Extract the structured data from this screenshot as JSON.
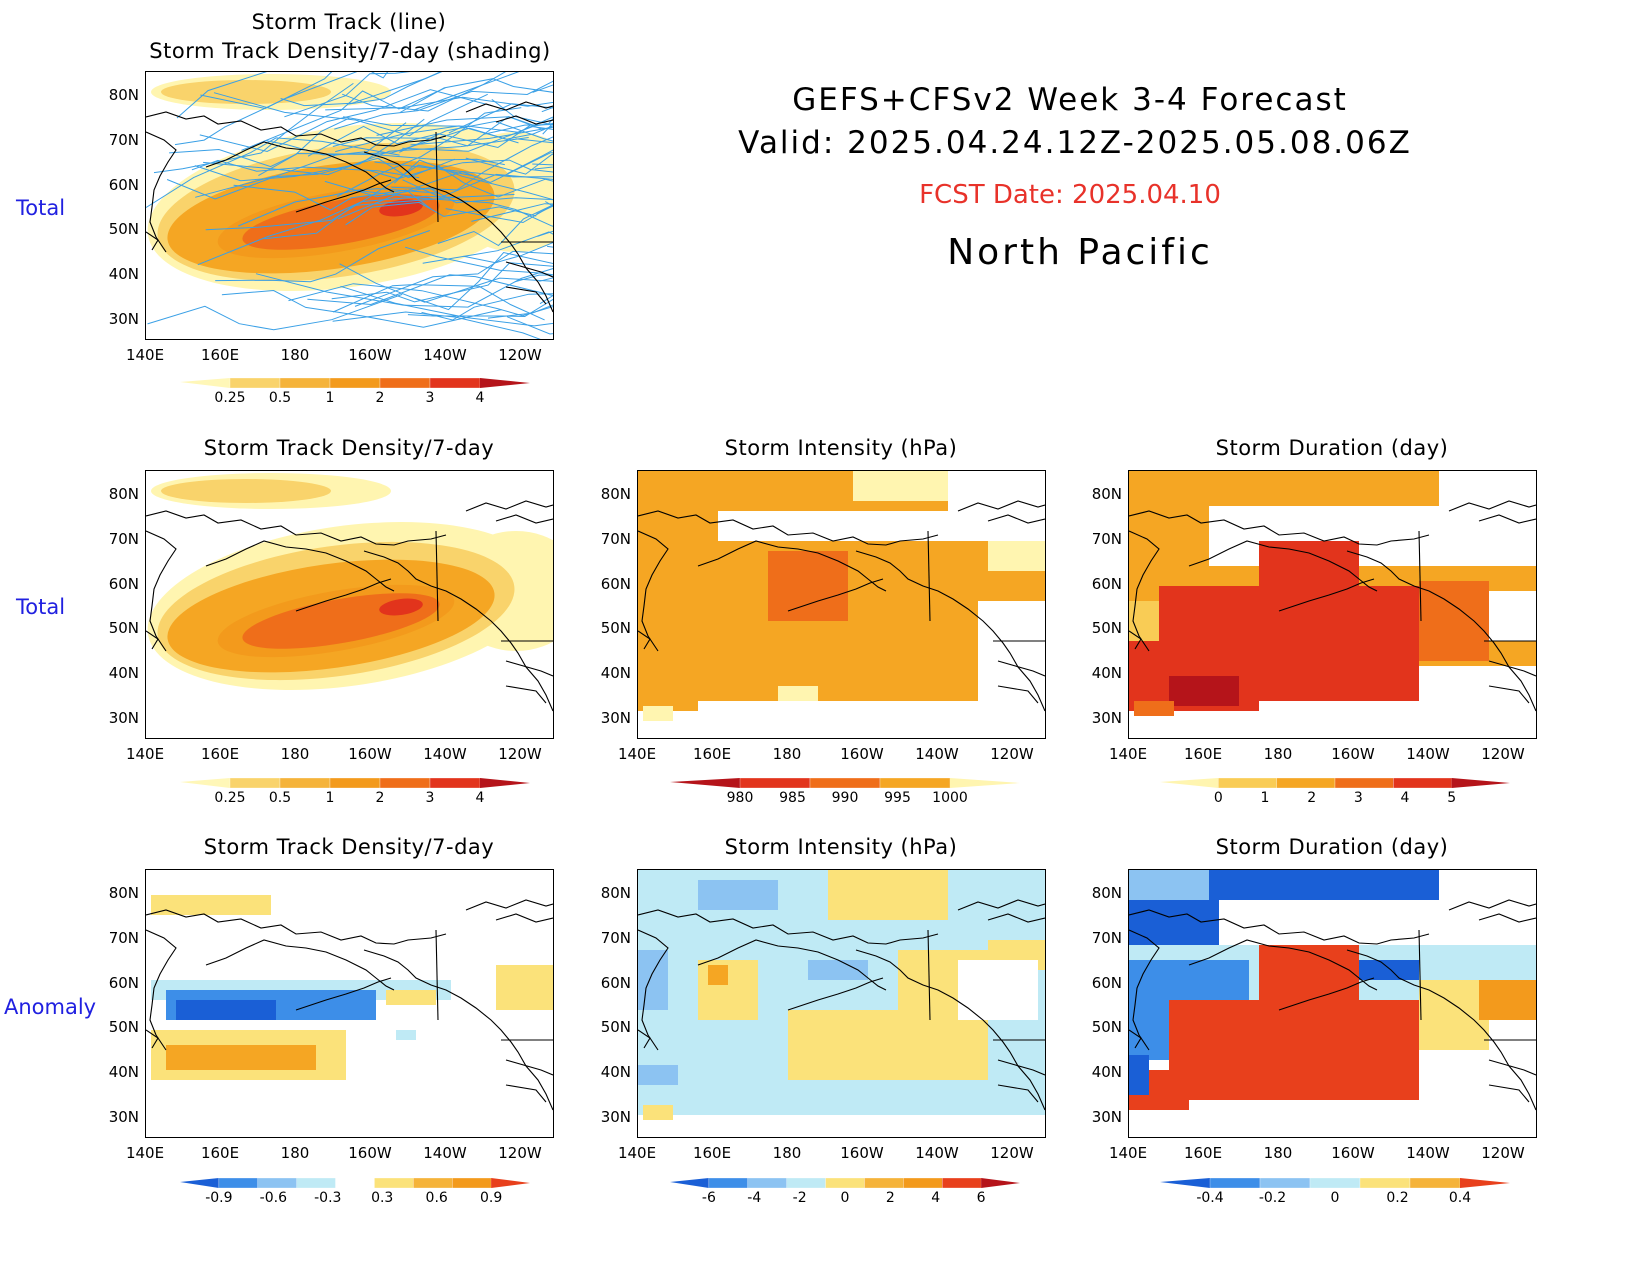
{
  "header": {
    "line1": "GEFS+CFSv2  Week  3-4  Forecast",
    "line2": "Valid:  2025.04.24.12Z-2025.05.08.06Z",
    "fcst": "FCST Date: 2025.04.10",
    "region": "North  Pacific"
  },
  "rows": {
    "total": "Total",
    "total2": "Total",
    "anomaly": "Anomaly"
  },
  "panels": {
    "p0": {
      "title1": "Storm Track (line)",
      "title2": "Storm Track Density/7-day (shading)"
    },
    "p1": {
      "title": "Storm  Track  Density/7-day"
    },
    "p2": {
      "title": "Storm  Intensity  (hPa)"
    },
    "p3": {
      "title": "Storm  Duration  (day)"
    },
    "p4": {
      "title": "Storm  Track  Density/7-day"
    },
    "p5": {
      "title": "Storm  Intensity  (hPa)"
    },
    "p6": {
      "title": "Storm  Duration  (day)"
    }
  },
  "axes": {
    "lat": [
      "80N",
      "70N",
      "60N",
      "50N",
      "40N",
      "30N"
    ],
    "lon": [
      "140E",
      "160E",
      "180",
      "160W",
      "140W",
      "120W"
    ]
  },
  "colorbars": {
    "density": {
      "labels": [
        "0.25",
        "0.5",
        "1",
        "2",
        "3",
        "4"
      ],
      "colors": [
        "#fff7b8",
        "#f9d36b",
        "#f5b33a",
        "#f39a1c",
        "#ef6e1a",
        "#e2341c",
        "#b5141a"
      ]
    },
    "intensity": {
      "labels": [
        "980",
        "985",
        "990",
        "995",
        "1000"
      ],
      "colors": [
        "#b5141a",
        "#e2341c",
        "#ef6e1a",
        "#f5a623",
        "#fff5b0"
      ]
    },
    "duration": {
      "labels": [
        "0",
        "1",
        "2",
        "3",
        "4",
        "5"
      ],
      "colors": [
        "#fff5b0",
        "#f9cc55",
        "#f5a623",
        "#ef6e1a",
        "#e2341c",
        "#b5141a"
      ]
    },
    "dens_anom": {
      "labels": [
        "-0.9",
        "-0.6",
        "-0.3",
        "0.3",
        "0.6",
        "0.9"
      ],
      "colors": [
        "#1a5fd6",
        "#3d8ee8",
        "#8cc3f2",
        "#bfeaf5",
        "#ffffff",
        "#fbe27a",
        "#f5b33a",
        "#f39a1c",
        "#e8401c"
      ]
    },
    "int_anom": {
      "labels": [
        "-6",
        "-4",
        "-2",
        "0",
        "2",
        "4",
        "6"
      ],
      "colors": [
        "#1a5fd6",
        "#3d8ee8",
        "#8cc3f2",
        "#bfeaf5",
        "#fbe27a",
        "#f5b33a",
        "#f39a1c",
        "#e8401c",
        "#b5141a"
      ]
    },
    "dur_anom": {
      "labels": [
        "-0.4",
        "-0.2",
        "0",
        "0.2",
        "0.4"
      ],
      "colors": [
        "#1a5fd6",
        "#3d8ee8",
        "#8cc3f2",
        "#bfeaf5",
        "#fbe27a",
        "#f5b33a",
        "#e8401c"
      ]
    }
  },
  "style": {
    "track_line": "#3aa0e6",
    "coast": "#000000"
  }
}
